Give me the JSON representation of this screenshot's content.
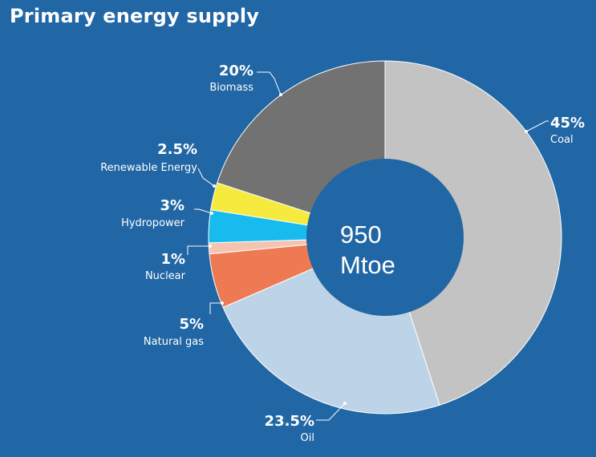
{
  "title": "Primary energy supply",
  "colors": {
    "background": "#2166a5",
    "center_disc": "#2166a5"
  },
  "chart_data": {
    "type": "pie",
    "title": "Primary energy supply",
    "center_label": [
      "950",
      "Mtoe"
    ],
    "slices": [
      {
        "name": "Coal",
        "value": 45,
        "label": "45%",
        "color": "#c3c3c3"
      },
      {
        "name": "Oil",
        "value": 23.5,
        "label": "23.5%",
        "color": "#bdd3e8"
      },
      {
        "name": "Natural gas",
        "value": 5,
        "label": "5%",
        "color": "#ee7a54"
      },
      {
        "name": "Nuclear",
        "value": 1,
        "label": "1%",
        "color": "#f4c4b0"
      },
      {
        "name": "Hydropower",
        "value": 3,
        "label": "3%",
        "color": "#17bbee"
      },
      {
        "name": "Renewable Energy",
        "value": 2.5,
        "label": "2.5%",
        "color": "#f5ea3d"
      },
      {
        "name": "Biomass",
        "value": 20,
        "label": "20%",
        "color": "#727272"
      }
    ]
  }
}
